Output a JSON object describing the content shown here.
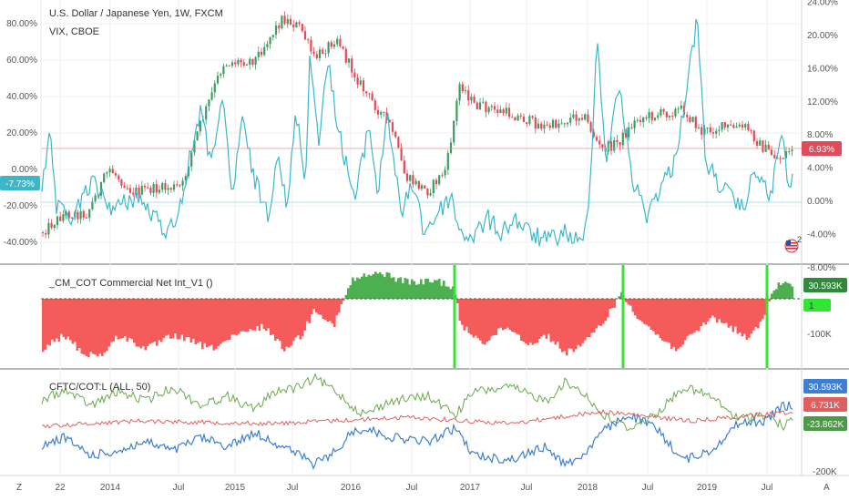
{
  "main_pane": {
    "title_line1": "U.S. Dollar / Japanese Yen, 1W, FXCM",
    "title_line2": "VIX, CBOE",
    "left_ticks": [
      "80.00%",
      "60.00%",
      "40.00%",
      "20.00%",
      "0.00%",
      "-20.00%",
      "-40.00%"
    ],
    "left_tick_values": [
      80,
      60,
      40,
      20,
      0,
      -20,
      -40
    ],
    "right_ticks": [
      "24.00%",
      "20.00%",
      "16.00%",
      "12.00%",
      "8.00%",
      "4.00%",
      "0.00%",
      "-4.00%",
      "-8.00%"
    ],
    "right_tick_values": [
      24,
      20,
      16,
      12,
      8,
      4,
      0,
      -4,
      -8
    ],
    "left_badge": "-7.73%",
    "right_badge": "6.93%",
    "flag_count": "2"
  },
  "cot_pane": {
    "title": "_CM_COT Commercial Net Int_V1 ()",
    "ticks": [
      "-100K"
    ],
    "badge_value": "30.593K",
    "badge_zero": "1"
  },
  "cftc_pane": {
    "title": "CFTC/COT:L (ALL, 50)",
    "badge_blue": "30.593K",
    "badge_red": "6.731K",
    "badge_green": "-23.862K",
    "cut_tick": "-200K"
  },
  "x_axis": {
    "labels": [
      "22",
      "2014",
      "Jul",
      "2015",
      "Jul",
      "2016",
      "Jul",
      "2017",
      "Jul",
      "2018",
      "Jul",
      "2019",
      "Jul"
    ],
    "corner_left": "Z",
    "corner_right": "A"
  },
  "colors": {
    "up": "#26a69a",
    "candle_up": "#3b9d5e",
    "candle_down": "#e04a5a",
    "vix": "#3cb7c9",
    "cot_pos": "#4caf50",
    "cot_neg": "#f55b5b",
    "green_marker": "#33e533",
    "blue_line": "#3f7fd0",
    "red_line": "#e06060",
    "green_line": "#6aa84f"
  }
}
